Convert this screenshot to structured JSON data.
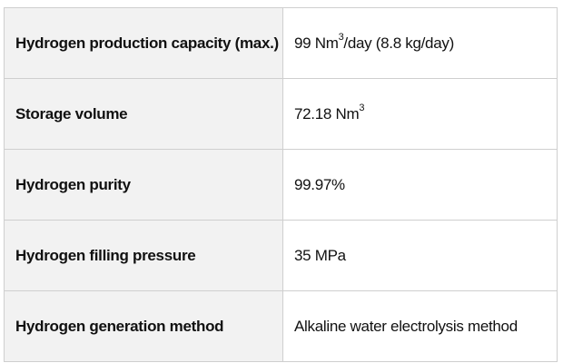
{
  "table": {
    "rows": [
      {
        "label": "Hydrogen production capacity (max.)",
        "value_pre": "99 Nm",
        "value_sup": "3",
        "value_post": "/day (8.8 kg/day)"
      },
      {
        "label": "Storage volume",
        "value_pre": "72.18 Nm",
        "value_sup": "3",
        "value_post": ""
      },
      {
        "label": "Hydrogen purity",
        "value_pre": "99.97%",
        "value_sup": "",
        "value_post": ""
      },
      {
        "label": "Hydrogen filling pressure",
        "value_pre": "35 MPa",
        "value_sup": "",
        "value_post": ""
      },
      {
        "label": "Hydrogen generation method",
        "value_pre": "Alkaline water electrolysis method",
        "value_sup": "",
        "value_post": ""
      }
    ]
  }
}
